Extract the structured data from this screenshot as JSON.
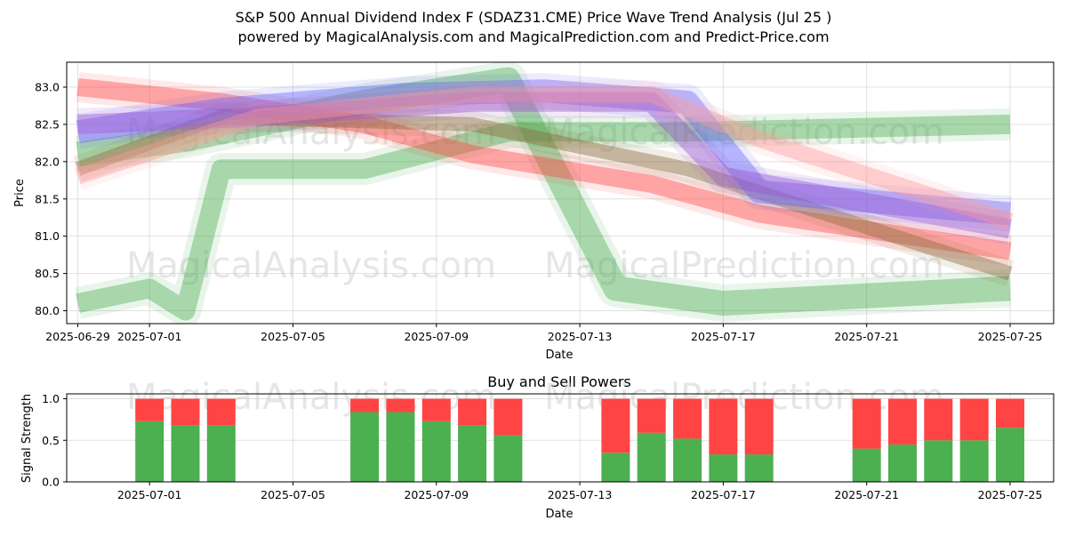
{
  "title_line1": "S&P 500 Annual Dividend Index F (SDAZ31.CME) Price Wave Trend Analysis (Jul 25 )",
  "title_line2": "powered by MagicalAnalysis.com and MagicalPrediction.com and Predict-Price.com",
  "watermarks": [
    "MagicalAnalysis.com",
    "MagicalPrediction.com"
  ],
  "colors": {
    "green": "#4caf50",
    "red": "#ff4444",
    "blue": "#6666ff",
    "purple": "#9955cc",
    "pink": "#ff9999",
    "brown": "#8b6a3a"
  },
  "chart_data": [
    {
      "type": "area",
      "title": "",
      "xlabel": "Date",
      "ylabel": "Price",
      "xlim": [
        "2025-06-29",
        "2025-07-26"
      ],
      "ylim": [
        79.85,
        83.35
      ],
      "x_ticks": [
        "2025-06-29",
        "2025-07-01",
        "2025-07-05",
        "2025-07-09",
        "2025-07-13",
        "2025-07-17",
        "2025-07-21",
        "2025-07-25"
      ],
      "y_ticks": [
        80.0,
        80.5,
        81.0,
        81.5,
        82.0,
        82.5,
        83.0
      ],
      "grid": true,
      "series": [
        {
          "color": "green",
          "points": [
            [
              "2025-06-29",
              80.1
            ],
            [
              "2025-07-01",
              80.3
            ],
            [
              "2025-07-02",
              80.0
            ],
            [
              "2025-07-03",
              81.9
            ],
            [
              "2025-07-07",
              81.9
            ],
            [
              "2025-07-11",
              82.4
            ],
            [
              "2025-07-16",
              82.4
            ],
            [
              "2025-07-25",
              82.5
            ]
          ]
        },
        {
          "color": "green",
          "points": [
            [
              "2025-06-29",
              82.1
            ],
            [
              "2025-07-02",
              82.3
            ],
            [
              "2025-07-07",
              82.8
            ],
            [
              "2025-07-11",
              83.1
            ],
            [
              "2025-07-14",
              80.3
            ],
            [
              "2025-07-17",
              80.1
            ],
            [
              "2025-07-25",
              80.3
            ]
          ]
        },
        {
          "color": "red",
          "points": [
            [
              "2025-06-29",
              83.0
            ],
            [
              "2025-07-03",
              82.8
            ],
            [
              "2025-07-07",
              82.5
            ],
            [
              "2025-07-10",
              82.1
            ],
            [
              "2025-07-15",
              81.7
            ],
            [
              "2025-07-18",
              81.3
            ],
            [
              "2025-07-25",
              80.8
            ]
          ]
        },
        {
          "color": "brown",
          "points": [
            [
              "2025-06-29",
              81.9
            ],
            [
              "2025-07-03",
              82.6
            ],
            [
              "2025-07-10",
              82.5
            ],
            [
              "2025-07-16",
              81.9
            ],
            [
              "2025-07-25",
              80.5
            ]
          ]
        },
        {
          "color": "blue",
          "points": [
            [
              "2025-06-29",
              82.4
            ],
            [
              "2025-07-03",
              82.7
            ],
            [
              "2025-07-08",
              82.9
            ],
            [
              "2025-07-12",
              82.95
            ],
            [
              "2025-07-16",
              82.8
            ],
            [
              "2025-07-18",
              81.6
            ],
            [
              "2025-07-25",
              81.3
            ]
          ]
        },
        {
          "color": "purple",
          "points": [
            [
              "2025-06-29",
              82.5
            ],
            [
              "2025-07-04",
              82.6
            ],
            [
              "2025-07-10",
              82.8
            ],
            [
              "2025-07-15",
              82.8
            ],
            [
              "2025-07-17",
              81.8
            ],
            [
              "2025-07-25",
              81.1
            ]
          ]
        },
        {
          "color": "pink",
          "points": [
            [
              "2025-06-29",
              81.8
            ],
            [
              "2025-07-04",
              82.6
            ],
            [
              "2025-07-10",
              82.9
            ],
            [
              "2025-07-15",
              82.9
            ],
            [
              "2025-07-18",
              82.3
            ],
            [
              "2025-07-25",
              81.2
            ]
          ]
        }
      ]
    },
    {
      "type": "bar",
      "title": "Buy and Sell Powers",
      "xlabel": "Date",
      "ylabel": "Signal Strength",
      "xlim": [
        "2025-06-29",
        "2025-07-26"
      ],
      "ylim": [
        0,
        1.05
      ],
      "x_ticks": [
        "2025-07-01",
        "2025-07-05",
        "2025-07-09",
        "2025-07-13",
        "2025-07-17",
        "2025-07-21",
        "2025-07-25"
      ],
      "y_ticks": [
        0.0,
        0.5,
        1.0
      ],
      "grid": true,
      "categories": [
        "2025-07-01",
        "2025-07-02",
        "2025-07-03",
        "2025-07-07",
        "2025-07-08",
        "2025-07-09",
        "2025-07-10",
        "2025-07-11",
        "2025-07-14",
        "2025-07-15",
        "2025-07-16",
        "2025-07-17",
        "2025-07-18",
        "2025-07-21",
        "2025-07-22",
        "2025-07-23",
        "2025-07-24",
        "2025-07-25"
      ],
      "buy": [
        0.73,
        0.68,
        0.68,
        0.84,
        0.84,
        0.73,
        0.68,
        0.56,
        0.35,
        0.59,
        0.52,
        0.33,
        0.33,
        0.4,
        0.45,
        0.5,
        0.5,
        0.65
      ],
      "total": 1.0
    }
  ]
}
